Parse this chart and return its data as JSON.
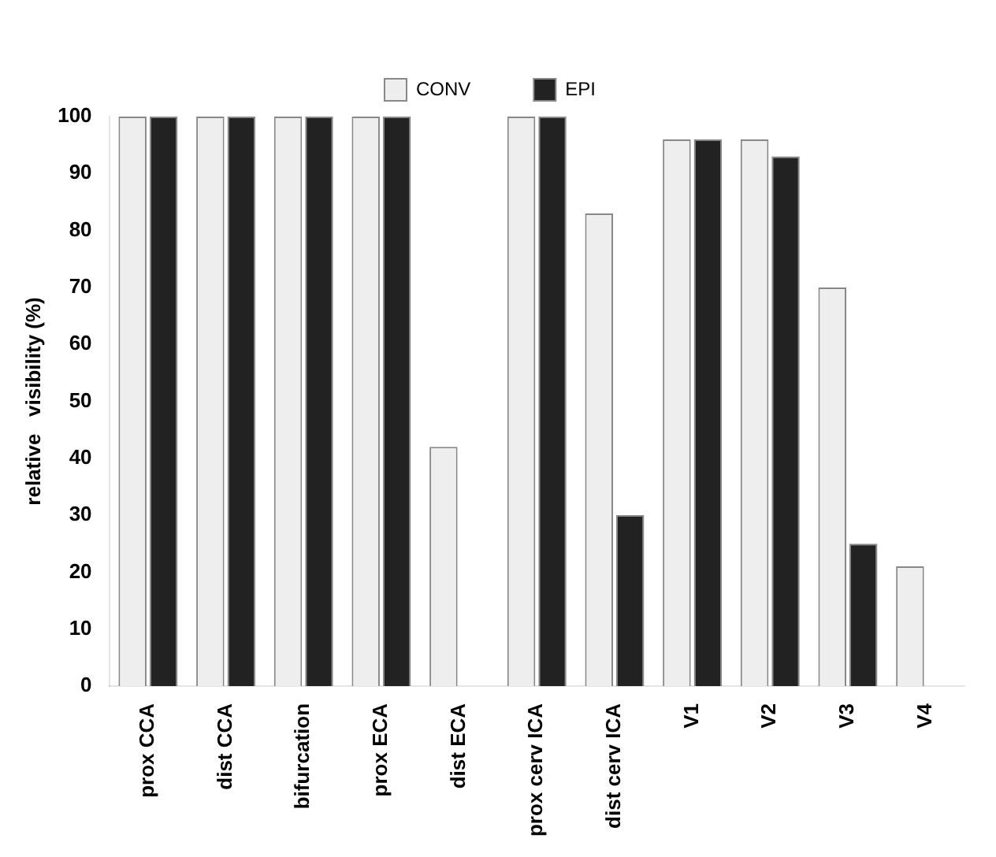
{
  "chart_data": {
    "type": "bar",
    "ylabel": "relative   visibility (%)",
    "categories": [
      "prox CCA",
      "dist CCA",
      "bifurcation",
      "prox ECA",
      "dist ECA",
      "prox cerv ICA",
      "dist cerv ICA",
      "V1",
      "V2",
      "V3",
      "V4"
    ],
    "series": [
      {
        "name": "CONV",
        "color": "#eeeeee",
        "values": [
          100,
          100,
          100,
          100,
          42,
          100,
          83,
          96,
          96,
          70,
          21
        ]
      },
      {
        "name": "EPI",
        "color": "#222222",
        "values": [
          100,
          100,
          100,
          100,
          0,
          100,
          30,
          96,
          93,
          25,
          0
        ]
      }
    ],
    "ylim": [
      0,
      100
    ],
    "yticks": [
      0,
      10,
      20,
      30,
      40,
      50,
      60,
      70,
      80,
      90,
      100
    ],
    "grid": false,
    "legend": "top"
  }
}
